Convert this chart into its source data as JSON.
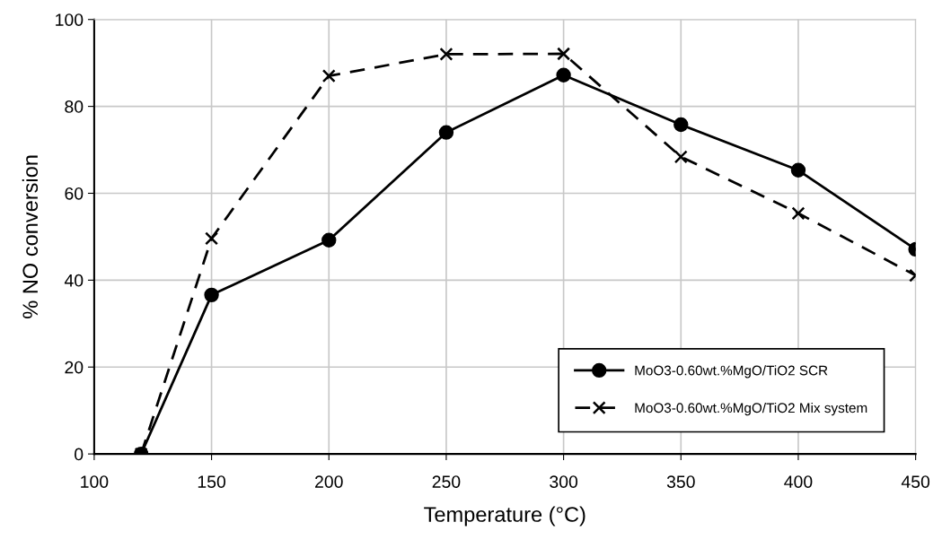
{
  "chart_data": {
    "type": "line",
    "xlabel": "Temperature (°C)",
    "ylabel": "% NO conversion",
    "xlim": [
      100,
      450
    ],
    "xticks": [
      100,
      150,
      200,
      250,
      300,
      350,
      400,
      450
    ],
    "ylim": [
      0,
      100
    ],
    "yticks": [
      0,
      20,
      40,
      60,
      80,
      100
    ],
    "grid": true,
    "legend": "bottom right",
    "series": [
      {
        "name": "MoO3-0.60wt.%MgO/TiO2 SCR",
        "color": "#000000",
        "marker": "circle",
        "line_style": "solid",
        "x": [
          120,
          150,
          200,
          250,
          300,
          350,
          400,
          450
        ],
        "values": [
          0,
          36.6,
          49.2,
          74,
          87.2,
          75.8,
          65.3,
          47.1
        ]
      },
      {
        "name": "MoO3-0.60wt.%MgO/TiO2 Mix system",
        "color": "#000000",
        "marker": "cross",
        "line_style": "dashed",
        "x": [
          120,
          150,
          200,
          250,
          300,
          350,
          400,
          450
        ],
        "values": [
          0,
          49.6,
          87,
          92,
          92.1,
          68.4,
          55.4,
          41.1
        ]
      }
    ]
  }
}
